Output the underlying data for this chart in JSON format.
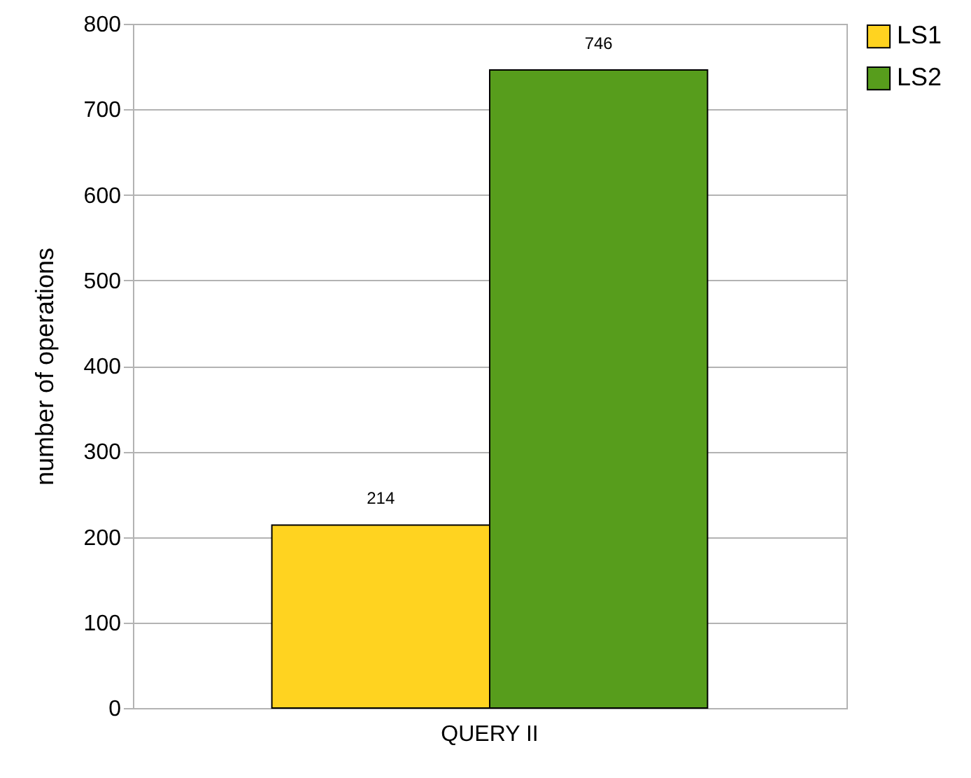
{
  "chart_data": {
    "type": "bar",
    "categories": [
      "QUERY II"
    ],
    "ylabel": "number of operations",
    "series": [
      {
        "name": "LS1",
        "color": "#ffd320",
        "values": [
          214
        ]
      },
      {
        "name": "LS2",
        "color": "#579d1c",
        "values": [
          746
        ]
      }
    ],
    "ylim": [
      0,
      800
    ],
    "yticks": [
      0,
      100,
      200,
      300,
      400,
      500,
      600,
      700,
      800
    ],
    "grid": "y",
    "legend": "right",
    "data_labels": true
  }
}
